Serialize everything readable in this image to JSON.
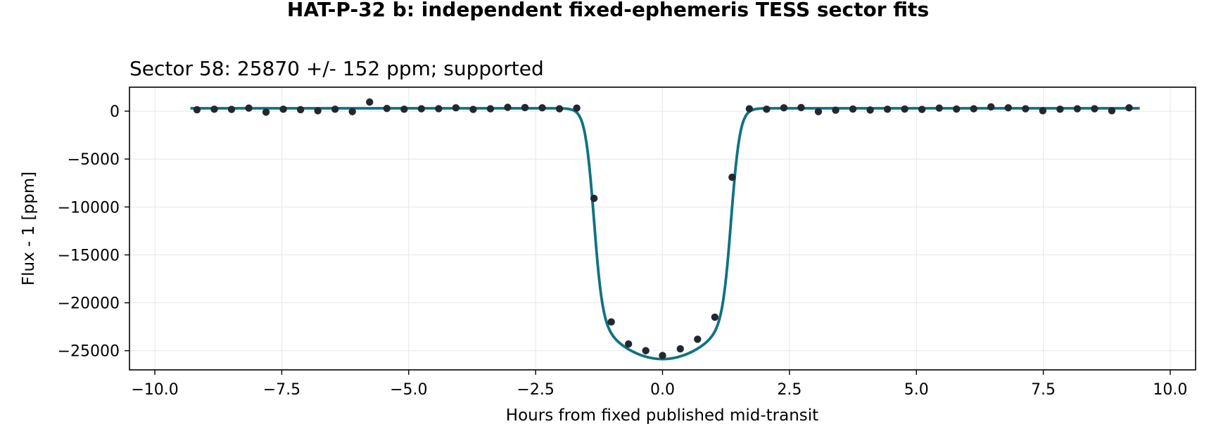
{
  "figure": {
    "suptitle": "HAT-P-32 b: independent fixed-ephemeris TESS sector fits",
    "axes_title": "Sector 58: 25870 +/- 152 ppm; supported"
  },
  "chart_data": {
    "type": "scatter",
    "xlabel": "Hours from fixed published mid-transit",
    "ylabel": "Flux - 1 [ppm]",
    "xlim": [
      -10.5,
      10.5
    ],
    "ylim": [
      -27000,
      2500
    ],
    "xticks": [
      -10.0,
      -7.5,
      -5.0,
      -2.5,
      0.0,
      2.5,
      5.0,
      7.5,
      10.0
    ],
    "xtick_labels": [
      "−10.0",
      "−7.5",
      "−5.0",
      "−2.5",
      "0.0",
      "2.5",
      "5.0",
      "7.5",
      "10.0"
    ],
    "yticks": [
      0,
      -5000,
      -10000,
      -15000,
      -20000,
      -25000
    ],
    "ytick_labels": [
      "0",
      "−5000",
      "−10000",
      "−15000",
      "−20000",
      "−25000"
    ],
    "grid": true,
    "colors": {
      "model": "#0e7282",
      "data": "#222831",
      "grid": "#e6e6e6"
    },
    "series": [
      {
        "kind": "points",
        "x": [
          -9.17,
          -8.83,
          -8.49,
          -8.15,
          -7.81,
          -7.47,
          -7.13,
          -6.79,
          -6.45,
          -6.11,
          -5.77,
          -5.43,
          -5.09,
          -4.75,
          -4.41,
          -4.07,
          -3.73,
          -3.39,
          -3.05,
          -2.71,
          -2.37,
          -2.03,
          -1.69,
          -1.35,
          -1.01,
          -0.67,
          -0.33,
          0.0,
          0.35,
          0.69,
          1.03,
          1.37,
          1.71,
          2.05,
          2.39,
          2.73,
          3.07,
          3.41,
          3.75,
          4.09,
          4.43,
          4.77,
          5.11,
          5.45,
          5.79,
          6.13,
          6.47,
          6.81,
          7.15,
          7.49,
          7.83,
          8.17,
          8.51,
          8.85,
          9.19
        ],
        "y": [
          150,
          200,
          180,
          320,
          -100,
          200,
          160,
          50,
          200,
          -50,
          950,
          280,
          200,
          250,
          260,
          350,
          180,
          250,
          400,
          380,
          350,
          250,
          320,
          -9100,
          -22000,
          -24300,
          -25000,
          -25500,
          -24800,
          -23800,
          -21500,
          -6900,
          250,
          200,
          350,
          380,
          -50,
          100,
          220,
          120,
          200,
          220,
          180,
          320,
          220,
          250,
          450,
          350,
          250,
          50,
          200,
          250,
          250,
          50,
          350
        ]
      },
      {
        "kind": "model",
        "depth": 25870,
        "baseline": 300,
        "x_range": [
          -9.3,
          9.4
        ]
      }
    ]
  }
}
